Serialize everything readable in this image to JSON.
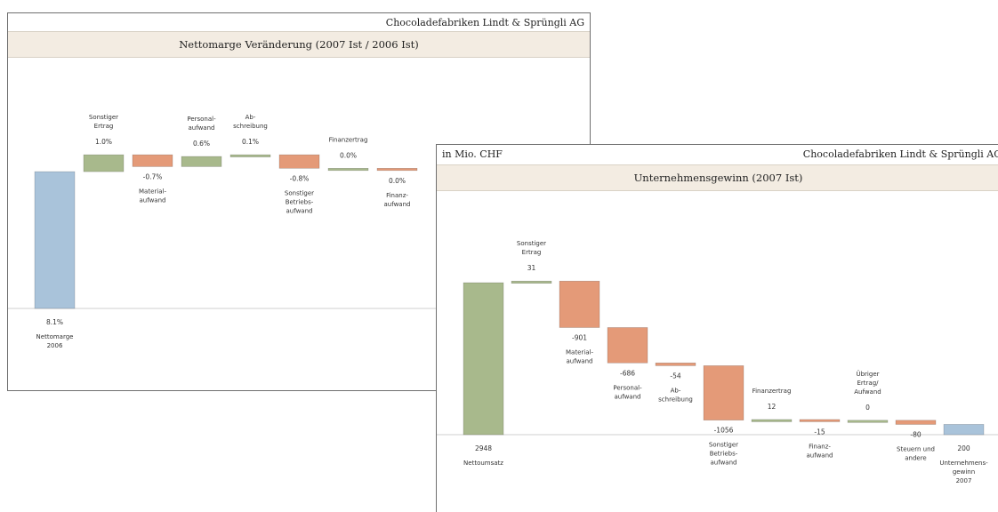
{
  "colors": {
    "increase": "#a8b98c",
    "decrease": "#e49a78",
    "total_blue": "#a9c3da",
    "total_green": "#a8b98c",
    "band": "#f3ece2"
  },
  "left": {
    "company": "Chocoladefabriken Lindt & Sprüngli AG",
    "title": "Nettomarge Veränderung (2007 Ist / 2006 Ist)"
  },
  "right": {
    "unit": "in Mio. CHF",
    "company": "Chocoladefabriken Lindt & Sprüngli AG",
    "title": "Unternehmensgewinn (2007 Ist)"
  },
  "chart_data": [
    {
      "type": "bar",
      "subtype": "waterfall",
      "title": "Nettomarge Veränderung (2007 Ist / 2006 Ist)",
      "unit": "%",
      "categories": [
        [
          "Nettomarge",
          "2006"
        ],
        [
          "Sonstiger",
          "Ertrag"
        ],
        [
          "Material-",
          "aufwand"
        ],
        [
          "Personal-",
          "aufwand"
        ],
        [
          "Ab-",
          "schreibung"
        ],
        [
          "Sonstiger",
          "Betriebs-",
          "aufwand"
        ],
        [
          "Finanzertrag"
        ],
        [
          "Finanz-",
          "aufwand"
        ]
      ],
      "labels": [
        "8.1%",
        "1.0%",
        "-0.7%",
        "0.6%",
        "0.1%",
        "-0.8%",
        "0.0%",
        "0.0%"
      ],
      "values": [
        8.1,
        1.0,
        -0.7,
        0.6,
        0.1,
        -0.8,
        0.0,
        0.0
      ],
      "kinds": [
        "total",
        "increase",
        "decrease",
        "increase",
        "increase",
        "decrease",
        "increase",
        "decrease"
      ]
    },
    {
      "type": "bar",
      "subtype": "waterfall",
      "title": "Unternehmensgewinn (2007 Ist)",
      "unit": "Mio. CHF",
      "categories": [
        [
          "Nettoumsatz"
        ],
        [
          "Sonstiger",
          "Ertrag"
        ],
        [
          "Material-",
          "aufwand"
        ],
        [
          "Personal-",
          "aufwand"
        ],
        [
          "Ab-",
          "schreibung"
        ],
        [
          "Sonstiger",
          "Betriebs-",
          "aufwand"
        ],
        [
          "Finanzertrag"
        ],
        [
          "Finanz-",
          "aufwand"
        ],
        [
          "Übriger",
          "Ertrag/",
          "Aufwand"
        ],
        [
          "Steuern und",
          "andere"
        ],
        [
          "Unternehmens-",
          "gewinn",
          "2007"
        ]
      ],
      "labels": [
        "2948",
        "31",
        "-901",
        "-686",
        "-54",
        "-1056",
        "12",
        "-15",
        "0",
        "-80",
        "200"
      ],
      "values": [
        2948,
        31,
        -901,
        -686,
        -54,
        -1056,
        12,
        -15,
        0,
        -80,
        200
      ],
      "kinds": [
        "total",
        "increase",
        "decrease",
        "decrease",
        "decrease",
        "decrease",
        "increase",
        "decrease",
        "increase",
        "decrease",
        "total"
      ]
    }
  ]
}
